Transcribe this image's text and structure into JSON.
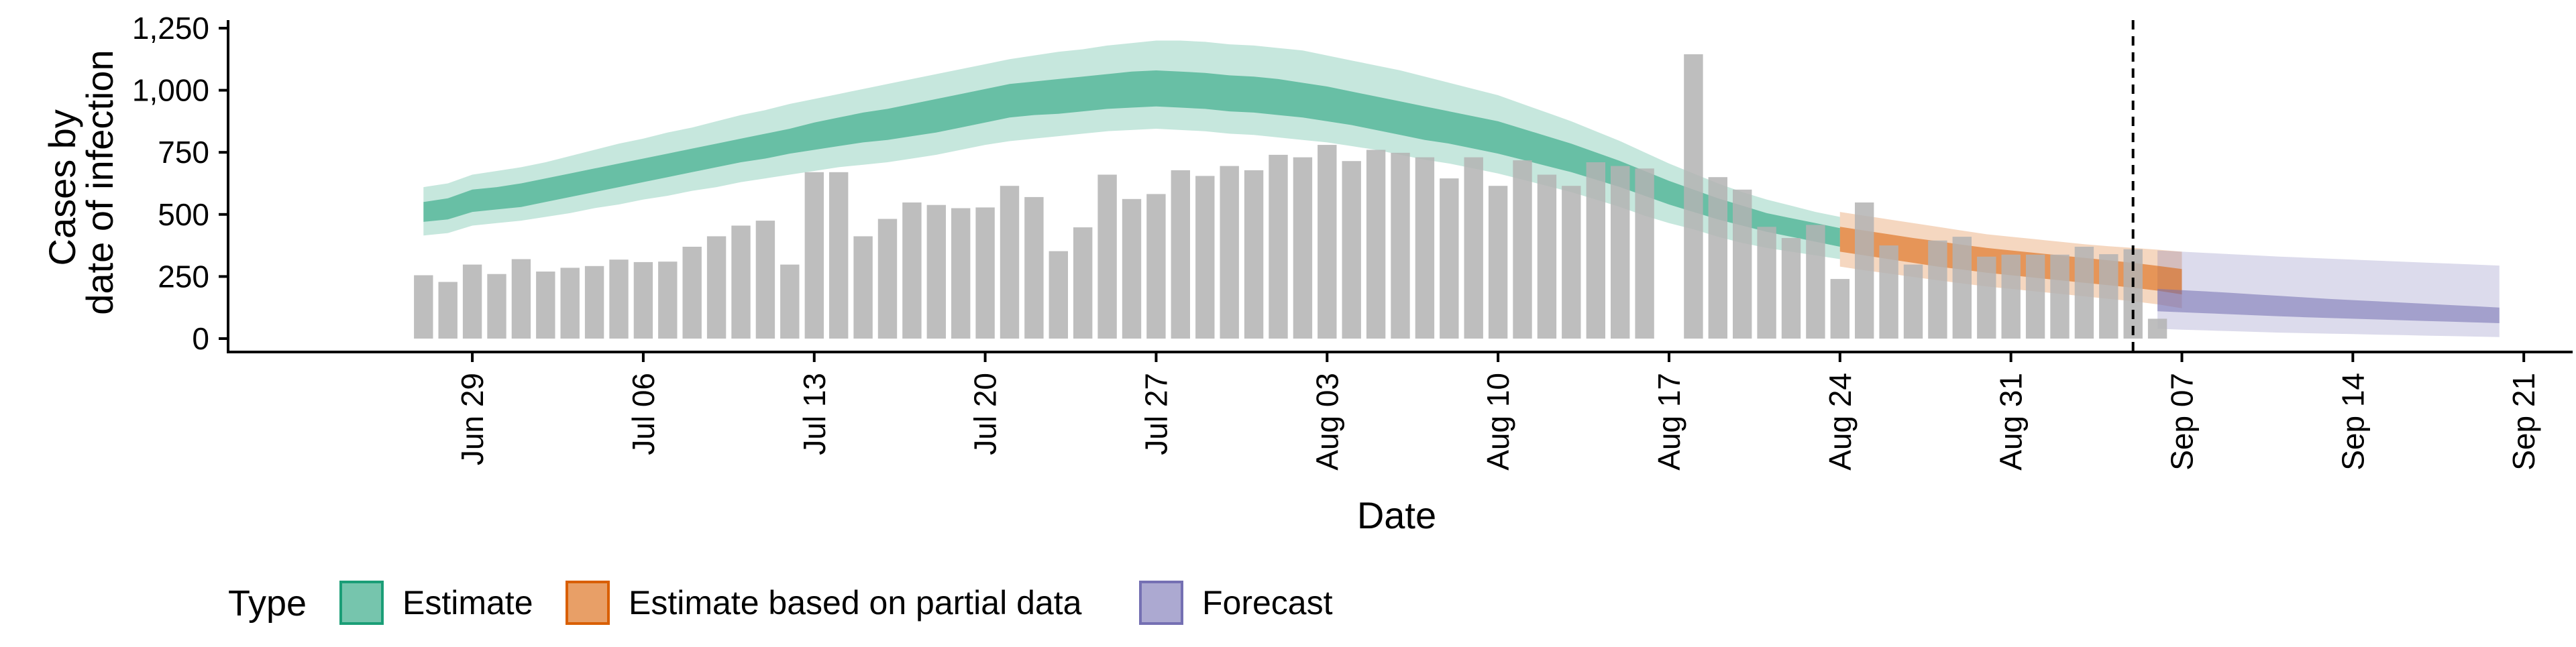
{
  "chart_data": {
    "type": "bar",
    "title": "",
    "xlabel": "Date",
    "ylabel_lines": [
      "Cases by",
      "date of infection"
    ],
    "xlim": [
      "2020-06-19",
      "2020-09-23"
    ],
    "ylim": [
      0,
      1250
    ],
    "y_ticks": [
      0,
      250,
      500,
      750,
      1000,
      1250
    ],
    "y_tick_labels": [
      "0",
      "250",
      "500",
      "750",
      "1,000",
      "1,250"
    ],
    "x_ticks": [
      "2020-06-29",
      "2020-07-06",
      "2020-07-13",
      "2020-07-20",
      "2020-07-27",
      "2020-08-03",
      "2020-08-10",
      "2020-08-17",
      "2020-08-24",
      "2020-08-31",
      "2020-09-07",
      "2020-09-14",
      "2020-09-21"
    ],
    "x_tick_labels": [
      "Jun 29",
      "Jul 06",
      "Jul 13",
      "Jul 20",
      "Jul 27",
      "Aug 03",
      "Aug 10",
      "Aug 17",
      "Aug 24",
      "Aug 31",
      "Sep 07",
      "Sep 14",
      "Sep 21"
    ],
    "vline_date": "2020-09-05",
    "grid": false,
    "legend_position": "bottom",
    "legend_title": "Type",
    "legend": [
      {
        "label": "Estimate",
        "color": "#1b9e77"
      },
      {
        "label": "Estimate based on partial data",
        "color": "#d95f02"
      },
      {
        "label": "Forecast",
        "color": "#7570b3"
      }
    ],
    "bar_color": "#b3b3b3",
    "reported_cases": {
      "start_date": "2020-06-27",
      "values": [
        255,
        228,
        298,
        260,
        320,
        270,
        285,
        292,
        318,
        308,
        310,
        370,
        412,
        455,
        475,
        298,
        670,
        670,
        412,
        482,
        548,
        538,
        525,
        528,
        615,
        570,
        352,
        448,
        660,
        562,
        582,
        678,
        655,
        695,
        678,
        740,
        730,
        780,
        715,
        760,
        748,
        730,
        645,
        730,
        615,
        718,
        660,
        615,
        710,
        695,
        685,
        null,
        1145,
        650,
        600,
        450,
        405,
        458,
        240,
        548,
        375,
        298,
        395,
        410,
        330,
        338,
        338,
        338,
        370,
        340,
        360,
        80
      ]
    },
    "estimate": {
      "start_date": "2020-06-27",
      "median": [
        510,
        525,
        560,
        570,
        580,
        600,
        620,
        640,
        660,
        680,
        700,
        720,
        740,
        760,
        780,
        800,
        820,
        840,
        850,
        860,
        880,
        900,
        920,
        940,
        960,
        970,
        980,
        990,
        1000,
        1005,
        1010,
        1005,
        1000,
        990,
        985,
        975,
        960,
        945,
        930,
        910,
        890,
        870,
        850,
        830,
        810,
        780,
        750,
        720,
        690,
        655,
        615,
        575,
        545,
        515,
        485,
        460,
        440,
        420,
        400
      ],
      "inner": {
        "lower": [
          470,
          480,
          510,
          520,
          530,
          550,
          570,
          590,
          610,
          630,
          650,
          670,
          690,
          710,
          725,
          745,
          760,
          775,
          790,
          800,
          815,
          830,
          850,
          870,
          890,
          900,
          905,
          915,
          925,
          930,
          935,
          930,
          925,
          915,
          910,
          900,
          890,
          875,
          860,
          840,
          820,
          800,
          785,
          765,
          745,
          720,
          695,
          670,
          640,
          610,
          575,
          540,
          510,
          480,
          455,
          430,
          410,
          390,
          370
        ],
        "upper": [
          550,
          565,
          600,
          610,
          625,
          645,
          665,
          685,
          705,
          725,
          745,
          765,
          785,
          805,
          825,
          845,
          870,
          890,
          910,
          925,
          945,
          965,
          985,
          1005,
          1025,
          1035,
          1045,
          1055,
          1065,
          1075,
          1080,
          1075,
          1070,
          1060,
          1055,
          1045,
          1030,
          1015,
          995,
          975,
          955,
          935,
          915,
          895,
          875,
          845,
          815,
          785,
          750,
          715,
          675,
          635,
          600,
          565,
          535,
          505,
          485,
          465,
          445
        ]
      },
      "outer": {
        "lower": [
          415,
          425,
          455,
          465,
          475,
          490,
          505,
          525,
          540,
          560,
          575,
          595,
          610,
          630,
          645,
          660,
          675,
          690,
          700,
          710,
          725,
          740,
          760,
          780,
          795,
          805,
          815,
          825,
          835,
          840,
          845,
          840,
          835,
          825,
          820,
          810,
          800,
          790,
          775,
          760,
          740,
          720,
          705,
          685,
          665,
          640,
          615,
          590,
          560,
          530,
          495,
          465,
          440,
          410,
          385,
          365,
          350,
          335,
          320
        ],
        "upper": [
          610,
          625,
          660,
          675,
          690,
          710,
          735,
          760,
          785,
          805,
          830,
          850,
          875,
          900,
          920,
          945,
          965,
          985,
          1005,
          1025,
          1045,
          1065,
          1085,
          1105,
          1125,
          1140,
          1155,
          1165,
          1180,
          1190,
          1200,
          1200,
          1195,
          1185,
          1180,
          1170,
          1160,
          1140,
          1120,
          1100,
          1080,
          1055,
          1030,
          1005,
          980,
          945,
          910,
          875,
          835,
          795,
          750,
          705,
          665,
          625,
          590,
          560,
          535,
          510,
          490
        ]
      }
    },
    "estimate_partial": {
      "start_date": "2020-08-24",
      "median": [
        400,
        385,
        370,
        355,
        340,
        325,
        310,
        300,
        290,
        280,
        270,
        260,
        250,
        238,
        225
      ],
      "inner": {
        "lower": [
          350,
          335,
          320,
          305,
          290,
          278,
          265,
          255,
          245,
          235,
          225,
          215,
          205,
          193,
          178
        ],
        "upper": [
          450,
          435,
          420,
          405,
          392,
          378,
          365,
          355,
          345,
          335,
          325,
          315,
          305,
          293,
          280
        ]
      },
      "outer": {
        "lower": [
          290,
          275,
          262,
          248,
          235,
          222,
          210,
          200,
          190,
          180,
          170,
          160,
          150,
          138,
          122
        ],
        "upper": [
          510,
          495,
          480,
          465,
          450,
          435,
          420,
          410,
          400,
          390,
          380,
          372,
          365,
          358,
          350
        ]
      }
    },
    "forecast": {
      "start_date": "2020-09-06",
      "median": [
        160,
        155,
        150,
        145,
        140,
        135,
        130,
        126,
        122,
        118,
        114,
        110,
        106,
        102,
        98
      ],
      "inner": {
        "lower": [
          110,
          106,
          102,
          98,
          94,
          90,
          86,
          83,
          80,
          77,
          74,
          71,
          68,
          65,
          62
        ],
        "upper": [
          200,
          195,
          190,
          184,
          178,
          172,
          166,
          160,
          155,
          150,
          145,
          140,
          135,
          130,
          125
        ]
      },
      "outer": {
        "lower": [
          40,
          36,
          33,
          30,
          27,
          24,
          22,
          20,
          18,
          16,
          14,
          12,
          10,
          8,
          6
        ],
        "upper": [
          355,
          350,
          345,
          340,
          335,
          330,
          326,
          322,
          318,
          314,
          310,
          306,
          302,
          298,
          294
        ]
      }
    }
  }
}
